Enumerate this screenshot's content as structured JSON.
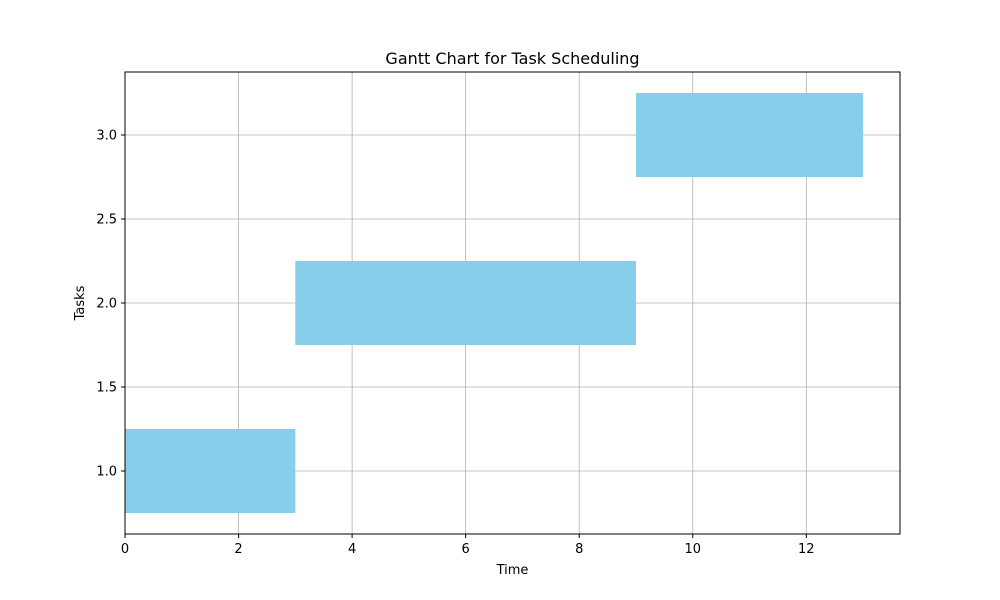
{
  "chart_data": {
    "type": "bar",
    "orientation": "horizontal",
    "title": "Gantt Chart for Task Scheduling",
    "xlabel": "Time",
    "ylabel": "Tasks",
    "xlim": [
      0,
      13.65
    ],
    "ylim": [
      0.625,
      3.375
    ],
    "xticks": [
      0,
      2,
      4,
      6,
      8,
      10,
      12
    ],
    "xtick_labels": [
      "0",
      "2",
      "4",
      "6",
      "8",
      "10",
      "12"
    ],
    "yticks": [
      1.0,
      1.5,
      2.0,
      2.5,
      3.0
    ],
    "ytick_labels": [
      "1.0",
      "1.5",
      "2.0",
      "2.5",
      "3.0"
    ],
    "grid": true,
    "legend": "none",
    "bar_color": "#87ceeb",
    "tasks": [
      {
        "task": 1,
        "start": 0,
        "end": 3,
        "bar_height": 0.5
      },
      {
        "task": 2,
        "start": 3,
        "end": 9,
        "bar_height": 0.5
      },
      {
        "task": 3,
        "start": 9,
        "end": 13,
        "bar_height": 0.5
      }
    ]
  }
}
